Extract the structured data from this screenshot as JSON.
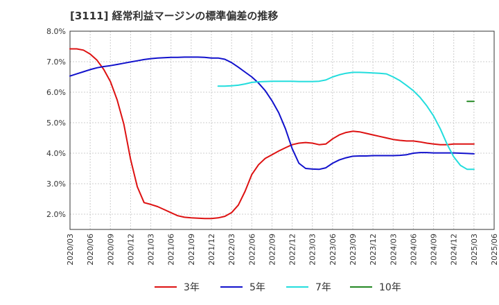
{
  "chart_data": {
    "type": "line",
    "title": "[3111]  経常利益マージンの標準偏差の推移",
    "xlabel": "",
    "ylabel": "",
    "ylim": [
      1.5,
      8.0
    ],
    "y_ticks": [
      "2.0%",
      "3.0%",
      "4.0%",
      "5.0%",
      "6.0%",
      "7.0%",
      "8.0%"
    ],
    "y_tick_values": [
      2,
      3,
      4,
      5,
      6,
      7,
      8
    ],
    "x_range": [
      "2020/03",
      "2025/06"
    ],
    "x_ticks": [
      "2020/03",
      "2020/06",
      "2020/09",
      "2020/12",
      "2021/03",
      "2021/06",
      "2021/09",
      "2021/12",
      "2022/03",
      "2022/06",
      "2022/09",
      "2022/12",
      "2023/03",
      "2023/06",
      "2023/09",
      "2023/12",
      "2024/03",
      "2024/06",
      "2024/09",
      "2024/12",
      "2025/03",
      "2025/06"
    ],
    "grid": true,
    "legend_position": "bottom",
    "series": [
      {
        "name": "3年",
        "color": "#dd1111",
        "points": [
          [
            "2020/03",
            7.42
          ],
          [
            "2020/04",
            7.42
          ],
          [
            "2020/05",
            7.38
          ],
          [
            "2020/06",
            7.25
          ],
          [
            "2020/07",
            7.05
          ],
          [
            "2020/08",
            6.75
          ],
          [
            "2020/09",
            6.35
          ],
          [
            "2020/10",
            5.75
          ],
          [
            "2020/11",
            4.95
          ],
          [
            "2020/12",
            3.8
          ],
          [
            "2021/01",
            2.9
          ],
          [
            "2021/02",
            2.38
          ],
          [
            "2021/03",
            2.32
          ],
          [
            "2021/04",
            2.25
          ],
          [
            "2021/05",
            2.15
          ],
          [
            "2021/06",
            2.05
          ],
          [
            "2021/07",
            1.95
          ],
          [
            "2021/08",
            1.9
          ],
          [
            "2021/09",
            1.88
          ],
          [
            "2021/10",
            1.87
          ],
          [
            "2021/11",
            1.86
          ],
          [
            "2021/12",
            1.86
          ],
          [
            "2022/01",
            1.88
          ],
          [
            "2022/02",
            1.93
          ],
          [
            "2022/03",
            2.05
          ],
          [
            "2022/04",
            2.3
          ],
          [
            "2022/05",
            2.75
          ],
          [
            "2022/06",
            3.3
          ],
          [
            "2022/07",
            3.62
          ],
          [
            "2022/08",
            3.83
          ],
          [
            "2022/09",
            3.95
          ],
          [
            "2022/10",
            4.07
          ],
          [
            "2022/11",
            4.18
          ],
          [
            "2022/12",
            4.28
          ],
          [
            "2023/01",
            4.33
          ],
          [
            "2023/02",
            4.35
          ],
          [
            "2023/03",
            4.33
          ],
          [
            "2023/04",
            4.28
          ],
          [
            "2023/05",
            4.3
          ],
          [
            "2023/06",
            4.47
          ],
          [
            "2023/07",
            4.6
          ],
          [
            "2023/08",
            4.68
          ],
          [
            "2023/09",
            4.72
          ],
          [
            "2023/10",
            4.7
          ],
          [
            "2023/11",
            4.65
          ],
          [
            "2023/12",
            4.6
          ],
          [
            "2024/01",
            4.55
          ],
          [
            "2024/02",
            4.5
          ],
          [
            "2024/03",
            4.45
          ],
          [
            "2024/04",
            4.42
          ],
          [
            "2024/05",
            4.4
          ],
          [
            "2024/06",
            4.4
          ],
          [
            "2024/07",
            4.37
          ],
          [
            "2024/08",
            4.33
          ],
          [
            "2024/09",
            4.3
          ],
          [
            "2024/10",
            4.28
          ],
          [
            "2024/11",
            4.28
          ],
          [
            "2024/12",
            4.3
          ],
          [
            "2025/01",
            4.3
          ],
          [
            "2025/02",
            4.3
          ],
          [
            "2025/03",
            4.3
          ]
        ]
      },
      {
        "name": "5年",
        "color": "#1111cc",
        "points": [
          [
            "2020/03",
            6.53
          ],
          [
            "2020/04",
            6.6
          ],
          [
            "2020/05",
            6.67
          ],
          [
            "2020/06",
            6.74
          ],
          [
            "2020/07",
            6.8
          ],
          [
            "2020/08",
            6.84
          ],
          [
            "2020/09",
            6.87
          ],
          [
            "2020/10",
            6.91
          ],
          [
            "2020/11",
            6.95
          ],
          [
            "2020/12",
            6.99
          ],
          [
            "2021/01",
            7.03
          ],
          [
            "2021/02",
            7.07
          ],
          [
            "2021/03",
            7.1
          ],
          [
            "2021/04",
            7.12
          ],
          [
            "2021/05",
            7.13
          ],
          [
            "2021/06",
            7.14
          ],
          [
            "2021/07",
            7.14
          ],
          [
            "2021/08",
            7.15
          ],
          [
            "2021/09",
            7.15
          ],
          [
            "2021/10",
            7.15
          ],
          [
            "2021/11",
            7.14
          ],
          [
            "2021/12",
            7.12
          ],
          [
            "2022/01",
            7.12
          ],
          [
            "2022/02",
            7.08
          ],
          [
            "2022/03",
            6.97
          ],
          [
            "2022/04",
            6.82
          ],
          [
            "2022/05",
            6.66
          ],
          [
            "2022/06",
            6.5
          ],
          [
            "2022/07",
            6.3
          ],
          [
            "2022/08",
            6.05
          ],
          [
            "2022/09",
            5.72
          ],
          [
            "2022/10",
            5.33
          ],
          [
            "2022/11",
            4.8
          ],
          [
            "2022/12",
            4.15
          ],
          [
            "2023/01",
            3.67
          ],
          [
            "2023/02",
            3.5
          ],
          [
            "2023/03",
            3.48
          ],
          [
            "2023/04",
            3.47
          ],
          [
            "2023/05",
            3.52
          ],
          [
            "2023/06",
            3.67
          ],
          [
            "2023/07",
            3.78
          ],
          [
            "2023/08",
            3.85
          ],
          [
            "2023/09",
            3.9
          ],
          [
            "2023/10",
            3.91
          ],
          [
            "2023/11",
            3.91
          ],
          [
            "2023/12",
            3.92
          ],
          [
            "2024/01",
            3.92
          ],
          [
            "2024/02",
            3.92
          ],
          [
            "2024/03",
            3.92
          ],
          [
            "2024/04",
            3.93
          ],
          [
            "2024/05",
            3.95
          ],
          [
            "2024/06",
            4.0
          ],
          [
            "2024/07",
            4.02
          ],
          [
            "2024/08",
            4.02
          ],
          [
            "2024/09",
            4.01
          ],
          [
            "2024/10",
            4.01
          ],
          [
            "2024/11",
            4.01
          ],
          [
            "2024/12",
            4.01
          ],
          [
            "2025/01",
            4.0
          ],
          [
            "2025/02",
            3.99
          ],
          [
            "2025/03",
            3.98
          ]
        ]
      },
      {
        "name": "7年",
        "color": "#22dddd",
        "points": [
          [
            "2022/01",
            6.2
          ],
          [
            "2022/02",
            6.2
          ],
          [
            "2022/03",
            6.21
          ],
          [
            "2022/04",
            6.23
          ],
          [
            "2022/05",
            6.27
          ],
          [
            "2022/06",
            6.32
          ],
          [
            "2022/07",
            6.34
          ],
          [
            "2022/08",
            6.35
          ],
          [
            "2022/09",
            6.36
          ],
          [
            "2022/10",
            6.36
          ],
          [
            "2022/11",
            6.36
          ],
          [
            "2022/12",
            6.36
          ],
          [
            "2023/01",
            6.35
          ],
          [
            "2023/02",
            6.35
          ],
          [
            "2023/03",
            6.35
          ],
          [
            "2023/04",
            6.36
          ],
          [
            "2023/05",
            6.4
          ],
          [
            "2023/06",
            6.5
          ],
          [
            "2023/07",
            6.57
          ],
          [
            "2023/08",
            6.62
          ],
          [
            "2023/09",
            6.65
          ],
          [
            "2023/10",
            6.65
          ],
          [
            "2023/11",
            6.64
          ],
          [
            "2023/12",
            6.63
          ],
          [
            "2024/01",
            6.62
          ],
          [
            "2024/02",
            6.6
          ],
          [
            "2024/03",
            6.5
          ],
          [
            "2024/04",
            6.38
          ],
          [
            "2024/05",
            6.22
          ],
          [
            "2024/06",
            6.05
          ],
          [
            "2024/07",
            5.83
          ],
          [
            "2024/08",
            5.55
          ],
          [
            "2024/09",
            5.22
          ],
          [
            "2024/10",
            4.8
          ],
          [
            "2024/11",
            4.3
          ],
          [
            "2024/12",
            3.88
          ],
          [
            "2025/01",
            3.6
          ],
          [
            "2025/02",
            3.47
          ],
          [
            "2025/03",
            3.47
          ]
        ]
      },
      {
        "name": "10年",
        "color": "#228822",
        "points": [
          [
            "2025/02",
            5.7
          ],
          [
            "2025/03",
            5.7
          ]
        ]
      }
    ]
  }
}
